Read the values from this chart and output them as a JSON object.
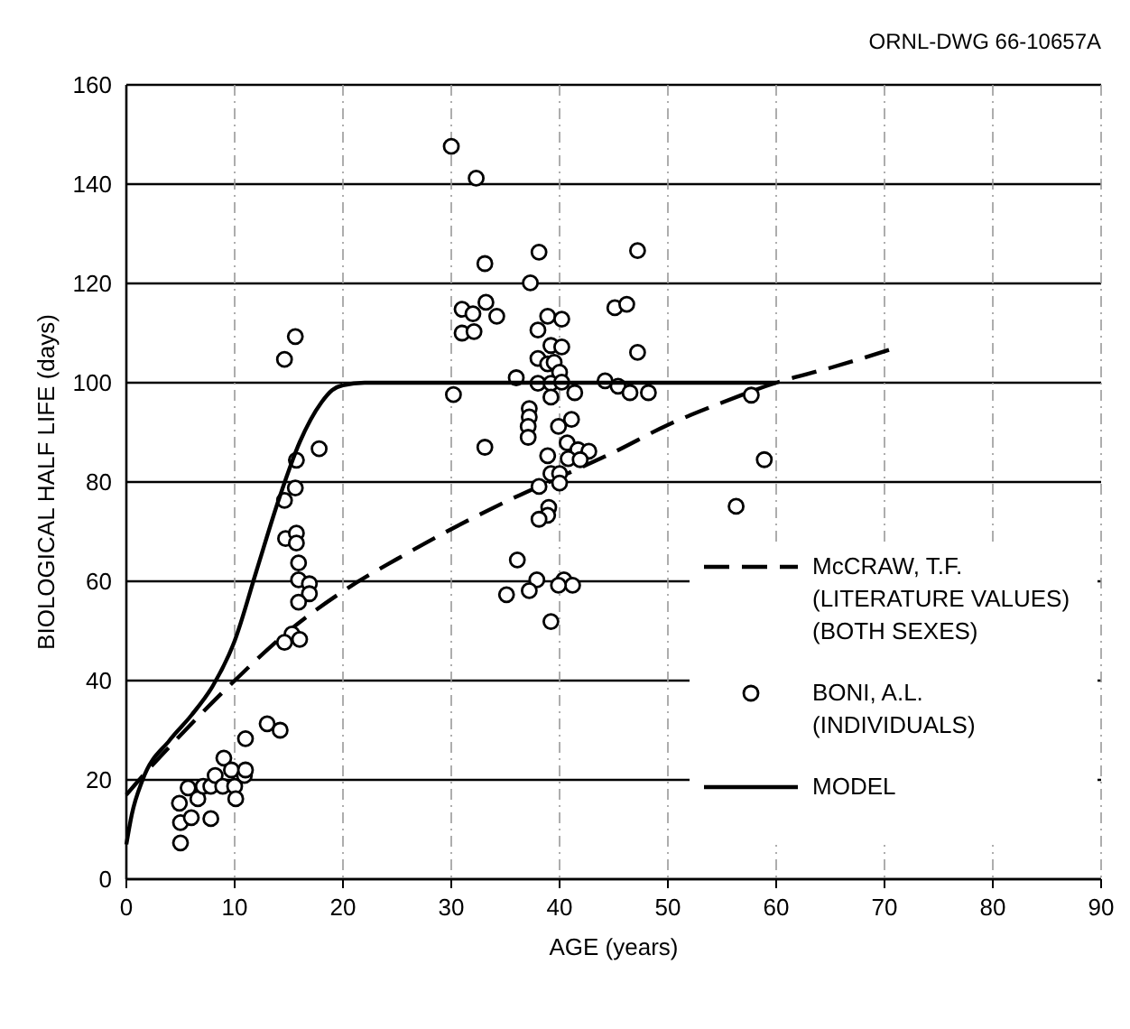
{
  "chart_data": {
    "type": "line",
    "xlabel": "AGE (years)",
    "ylabel": "BIOLOGICAL HALF LIFE (days)",
    "annotations": [
      "ORNL-DWG 66-10657A"
    ],
    "xlim": [
      0,
      90
    ],
    "ylim": [
      0,
      160
    ],
    "xticks": [
      0,
      10,
      20,
      30,
      40,
      50,
      60,
      70,
      80,
      90
    ],
    "yticks": [
      0,
      20,
      40,
      60,
      80,
      100,
      120,
      140,
      160
    ],
    "grid": true,
    "legend": "right",
    "series": [
      {
        "name": "McCRAW, T.F. (LITERATURE VALUES) (BOTH SEXES)",
        "line_style": "dashed",
        "color": "#000000",
        "x": [
          0,
          2,
          5,
          10,
          15,
          20,
          25,
          30,
          35,
          40,
          45,
          50,
          55,
          60,
          65,
          71
        ],
        "values": [
          17,
          22,
          29,
          40,
          50,
          58,
          64.5,
          70.5,
          76,
          81,
          86,
          91.5,
          96,
          100,
          103,
          107
        ]
      },
      {
        "name": "BONI, A.L. (INDIVIDUALS)",
        "type": "scatter",
        "marker": "circle",
        "color": "#000000",
        "x": [
          5,
          4.9,
          5,
          6,
          7.8,
          5.7,
          6.6,
          7.1,
          7.8,
          8.2,
          8.9,
          9,
          9.7,
          10,
          10.1,
          10.9,
          11,
          11,
          13,
          14.2,
          15.6,
          14.6,
          17.8,
          15.7,
          15.6,
          14.6,
          14.7,
          15.7,
          15.7,
          15.9,
          15.9,
          16.9,
          16.9,
          15.9,
          15.3,
          14.6,
          16,
          30,
          32.3,
          33.1,
          38.1,
          47.2,
          37.3,
          31,
          32,
          33.2,
          34.2,
          31,
          32.1,
          38.9,
          40.2,
          38,
          45.1,
          46.2,
          39.2,
          40.2,
          47.2,
          38,
          38.9,
          39.5,
          40,
          36,
          38,
          39.2,
          40.2,
          41.4,
          44.2,
          45.4,
          46.5,
          48.2,
          30.2,
          39.2,
          37.2,
          37.2,
          41.1,
          37.1,
          37.1,
          33.1,
          39.9,
          38.9,
          40.7,
          41.7,
          42.7,
          40.8,
          41.9,
          39.2,
          40,
          40,
          38.1,
          39,
          38.9,
          38.1,
          36.1,
          37.9,
          40.4,
          41.2,
          37.2,
          35.1,
          39.9,
          39.2,
          58.9,
          56.3,
          57.7
        ],
        "values": [
          7.3,
          15.3,
          11.4,
          12.4,
          12.2,
          18.4,
          16.2,
          18.7,
          18.7,
          20.9,
          18.7,
          24.4,
          22,
          18.7,
          16.2,
          20.9,
          22,
          28.3,
          31.3,
          30,
          109.3,
          104.7,
          86.7,
          84.4,
          78.8,
          76.3,
          68.6,
          69.7,
          67.7,
          63.7,
          60.3,
          59.5,
          57.5,
          55.8,
          49.4,
          47.7,
          48.3,
          147.6,
          141.2,
          124,
          126.3,
          126.6,
          120.1,
          114.8,
          113.9,
          116.2,
          113.4,
          110,
          110.3,
          113.4,
          112.8,
          110.6,
          115.1,
          115.8,
          107.5,
          107.2,
          106.1,
          104.9,
          103.8,
          104.1,
          102.1,
          101,
          99.9,
          99.9,
          100.1,
          98,
          100.4,
          99.3,
          98,
          98,
          97.6,
          97.1,
          94.8,
          93.1,
          92.6,
          91.2,
          89,
          87,
          91.2,
          85.3,
          87.9,
          86.5,
          86.2,
          84.7,
          84.5,
          81.7,
          81.7,
          79.8,
          79.1,
          74.9,
          73.3,
          72.5,
          64.3,
          60.3,
          60.3,
          59.2,
          58.1,
          57.3,
          59.2,
          51.9,
          84.5,
          75.1,
          97.5
        ]
      },
      {
        "name": "MODEL",
        "line_style": "solid",
        "color": "#000000",
        "x": [
          0,
          0.5,
          1.5,
          4,
          6,
          8,
          10,
          12,
          14,
          16,
          18,
          19,
          20,
          22,
          60
        ],
        "values": [
          7,
          13,
          20,
          28,
          33,
          39,
          48,
          62,
          76,
          88,
          96,
          98.5,
          99.5,
          100,
          100
        ]
      }
    ]
  }
}
